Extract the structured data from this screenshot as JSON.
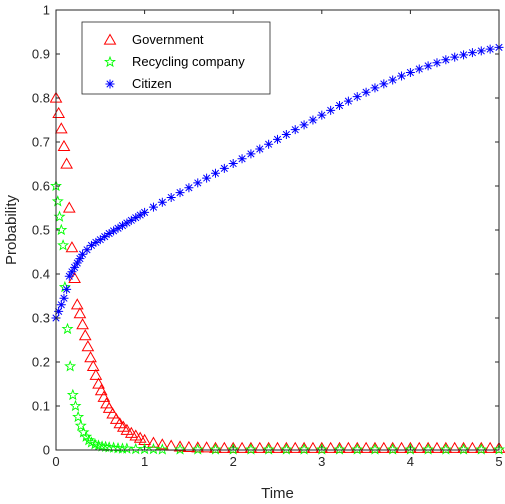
{
  "chart_data": {
    "type": "scatter",
    "title": "",
    "xlabel": "Time",
    "ylabel": "Probability",
    "xlim": [
      0,
      5
    ],
    "ylim": [
      0,
      1
    ],
    "xticks": [
      "0",
      "1",
      "2",
      "3",
      "4",
      "5"
    ],
    "yticks": [
      "0",
      "0.1",
      "0.2",
      "0.3",
      "0.4",
      "0.5",
      "0.6",
      "0.7",
      "0.8",
      "0.9",
      "1"
    ],
    "grid": false,
    "legend_position": "top-left",
    "series": [
      {
        "name": "Government",
        "marker": "triangle",
        "color": "#ff0000",
        "x": [
          0.0,
          0.03,
          0.06,
          0.09,
          0.12,
          0.15,
          0.18,
          0.21,
          0.24,
          0.27,
          0.3,
          0.33,
          0.36,
          0.39,
          0.42,
          0.45,
          0.48,
          0.51,
          0.54,
          0.57,
          0.6,
          0.64,
          0.68,
          0.72,
          0.76,
          0.8,
          0.85,
          0.9,
          0.95,
          1.0,
          1.1,
          1.2,
          1.3,
          1.4,
          1.5,
          1.6,
          1.7,
          1.8,
          1.9,
          2.0,
          2.1,
          2.2,
          2.3,
          2.4,
          2.5,
          2.6,
          2.7,
          2.8,
          2.9,
          3.0,
          3.1,
          3.2,
          3.3,
          3.4,
          3.5,
          3.6,
          3.7,
          3.8,
          3.9,
          4.0,
          4.1,
          4.2,
          4.3,
          4.4,
          4.5,
          4.6,
          4.7,
          4.8,
          4.9,
          5.0
        ],
        "y": [
          0.8,
          0.765,
          0.73,
          0.69,
          0.65,
          0.55,
          0.46,
          0.39,
          0.33,
          0.31,
          0.285,
          0.26,
          0.235,
          0.21,
          0.19,
          0.17,
          0.15,
          0.135,
          0.12,
          0.105,
          0.095,
          0.082,
          0.07,
          0.06,
          0.052,
          0.045,
          0.038,
          0.032,
          0.027,
          0.022,
          0.016,
          0.012,
          0.009,
          0.007,
          0.006,
          0.005,
          0.005,
          0.004,
          0.004,
          0.004,
          0.004,
          0.004,
          0.004,
          0.004,
          0.004,
          0.004,
          0.004,
          0.004,
          0.004,
          0.004,
          0.004,
          0.004,
          0.004,
          0.004,
          0.004,
          0.004,
          0.004,
          0.004,
          0.004,
          0.004,
          0.004,
          0.004,
          0.004,
          0.004,
          0.004,
          0.004,
          0.004,
          0.004,
          0.004,
          0.004
        ]
      },
      {
        "name": "Recycling company",
        "marker": "pentagram",
        "color": "#00ff00",
        "x": [
          0.0,
          0.02,
          0.04,
          0.06,
          0.08,
          0.1,
          0.13,
          0.16,
          0.19,
          0.22,
          0.25,
          0.28,
          0.31,
          0.34,
          0.37,
          0.4,
          0.44,
          0.48,
          0.52,
          0.56,
          0.6,
          0.65,
          0.7,
          0.75,
          0.8,
          0.9,
          1.0,
          1.1,
          1.2,
          1.4,
          1.6,
          1.8,
          2.0,
          2.2,
          2.4,
          2.6,
          2.8,
          3.0,
          3.2,
          3.4,
          3.6,
          3.8,
          4.0,
          4.2,
          4.4,
          4.6,
          4.8,
          5.0
        ],
        "y": [
          0.6,
          0.565,
          0.53,
          0.5,
          0.465,
          0.37,
          0.275,
          0.19,
          0.125,
          0.1,
          0.075,
          0.055,
          0.04,
          0.03,
          0.022,
          0.017,
          0.013,
          0.01,
          0.008,
          0.007,
          0.006,
          0.005,
          0.004,
          0.003,
          0.003,
          0.002,
          0.002,
          0.002,
          0.001,
          0.001,
          0.001,
          0.001,
          0.001,
          0.001,
          0.001,
          0.001,
          0.001,
          0.001,
          0.001,
          0.001,
          0.001,
          0.001,
          0.001,
          0.001,
          0.001,
          0.001,
          0.001,
          0.001
        ]
      },
      {
        "name": "Citizen",
        "marker": "asterisk",
        "color": "#0000ff",
        "x": [
          0.0,
          0.03,
          0.06,
          0.09,
          0.12,
          0.15,
          0.18,
          0.21,
          0.24,
          0.27,
          0.3,
          0.35,
          0.4,
          0.45,
          0.5,
          0.55,
          0.6,
          0.65,
          0.7,
          0.75,
          0.8,
          0.85,
          0.9,
          0.95,
          1.0,
          1.1,
          1.2,
          1.3,
          1.4,
          1.5,
          1.6,
          1.7,
          1.8,
          1.9,
          2.0,
          2.1,
          2.2,
          2.3,
          2.4,
          2.5,
          2.6,
          2.7,
          2.8,
          2.9,
          3.0,
          3.1,
          3.2,
          3.3,
          3.4,
          3.5,
          3.6,
          3.7,
          3.8,
          3.9,
          4.0,
          4.1,
          4.2,
          4.3,
          4.4,
          4.5,
          4.6,
          4.7,
          4.8,
          4.9,
          5.0
        ],
        "y": [
          0.3,
          0.315,
          0.33,
          0.345,
          0.365,
          0.395,
          0.405,
          0.415,
          0.425,
          0.435,
          0.445,
          0.455,
          0.465,
          0.472,
          0.478,
          0.485,
          0.492,
          0.498,
          0.504,
          0.51,
          0.516,
          0.522,
          0.528,
          0.534,
          0.54,
          0.552,
          0.563,
          0.574,
          0.585,
          0.596,
          0.607,
          0.618,
          0.629,
          0.64,
          0.651,
          0.662,
          0.673,
          0.684,
          0.695,
          0.706,
          0.717,
          0.728,
          0.739,
          0.75,
          0.761,
          0.772,
          0.783,
          0.793,
          0.803,
          0.813,
          0.823,
          0.832,
          0.841,
          0.85,
          0.858,
          0.866,
          0.873,
          0.88,
          0.887,
          0.893,
          0.898,
          0.903,
          0.907,
          0.911,
          0.915
        ]
      }
    ]
  }
}
